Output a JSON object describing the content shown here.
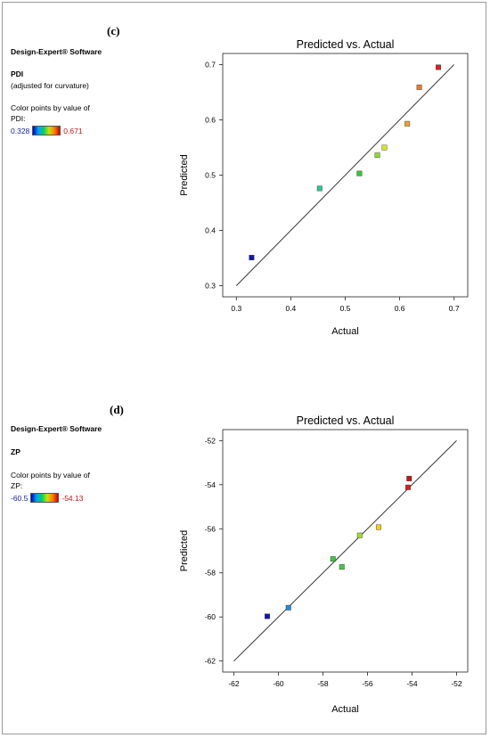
{
  "panels": [
    {
      "label": "(c)",
      "software": "Design-Expert® Software",
      "response": "PDI",
      "note": "(adjusted for curvature)",
      "color_note_line1": "Color points by value of",
      "color_note_line2": "PDI:",
      "color_min": "0.328",
      "color_max": "0.671"
    },
    {
      "label": "(d)",
      "software": "Design-Expert® Software",
      "response": "ZP",
      "note": "",
      "color_note_line1": "Color points by value of",
      "color_note_line2": "ZP:",
      "color_min": "-60.5",
      "color_max": "-54.13"
    }
  ],
  "chart_data": [
    {
      "type": "scatter",
      "title": "Predicted vs. Actual",
      "xlabel": "Actual",
      "ylabel": "Predicted",
      "xlim": [
        0.275,
        0.725
      ],
      "ylim": [
        0.28,
        0.72
      ],
      "xticks": [
        0.3,
        0.4,
        0.5,
        0.6,
        0.7
      ],
      "xtick_labels": [
        "0.3",
        "0.4",
        "0.5",
        "0.6",
        "0.7"
      ],
      "yticks": [
        0.3,
        0.4,
        0.5,
        0.6,
        0.7
      ],
      "ytick_labels": [
        "0.3",
        "0.4",
        "0.5",
        "0.6",
        "0.7"
      ],
      "reference_line": [
        [
          0.3,
          0.3
        ],
        [
          0.7,
          0.7
        ]
      ],
      "grid": false,
      "points": [
        {
          "x": 0.328,
          "y": 0.351,
          "color": "#1414b4"
        },
        {
          "x": 0.453,
          "y": 0.476,
          "color": "#28c896"
        },
        {
          "x": 0.526,
          "y": 0.503,
          "color": "#32c832"
        },
        {
          "x": 0.559,
          "y": 0.536,
          "color": "#8cdc28"
        },
        {
          "x": 0.572,
          "y": 0.55,
          "color": "#d2e61e"
        },
        {
          "x": 0.614,
          "y": 0.593,
          "color": "#f0a028"
        },
        {
          "x": 0.636,
          "y": 0.659,
          "color": "#f07820"
        },
        {
          "x": 0.671,
          "y": 0.695,
          "color": "#dc1e1e"
        }
      ]
    },
    {
      "type": "scatter",
      "title": "Predicted vs. Actual",
      "xlabel": "Actual",
      "ylabel": "Predicted",
      "xlim": [
        -62.5,
        -51.5
      ],
      "ylim": [
        -62.5,
        -51.5
      ],
      "xticks": [
        -62,
        -60,
        -58,
        -56,
        -54,
        -52
      ],
      "xtick_labels": [
        "-62",
        "-60",
        "-58",
        "-56",
        "-54",
        "-52"
      ],
      "yticks": [
        -62,
        -60,
        -58,
        -56,
        -54,
        -52
      ],
      "ytick_labels": [
        "-62",
        "-60",
        "-58",
        "-56",
        "-54",
        "-52"
      ],
      "reference_line": [
        [
          -62,
          -62
        ],
        [
          -52,
          -52
        ]
      ],
      "grid": false,
      "points": [
        {
          "x": -60.5,
          "y": -59.97,
          "color": "#1414b4"
        },
        {
          "x": -59.55,
          "y": -59.58,
          "color": "#1e8cdc"
        },
        {
          "x": -57.55,
          "y": -57.37,
          "color": "#3cc83c"
        },
        {
          "x": -57.15,
          "y": -57.73,
          "color": "#46c846"
        },
        {
          "x": -56.35,
          "y": -56.3,
          "color": "#a0dc28"
        },
        {
          "x": -55.5,
          "y": -55.93,
          "color": "#f0d21e"
        },
        {
          "x": -54.18,
          "y": -54.12,
          "color": "#dc1e1e"
        },
        {
          "x": -54.13,
          "y": -53.72,
          "color": "#c81414"
        }
      ]
    }
  ]
}
